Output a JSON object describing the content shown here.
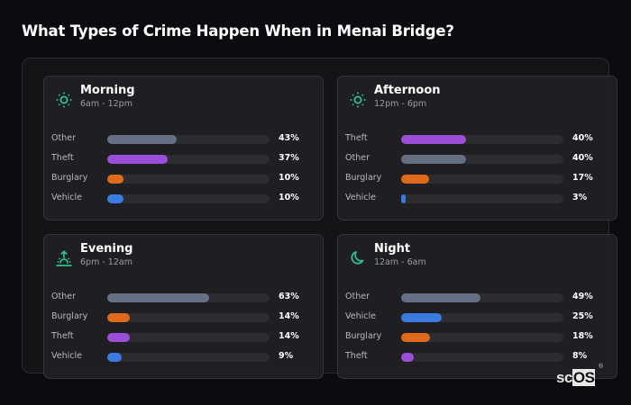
{
  "title": "What Types of Crime Happen When in Menai Bridge?",
  "colors": {
    "Other": "#667085",
    "Theft": "#9b4fd8",
    "Burglary": "#e06a1c",
    "Vehicle": "#3b7be0",
    "accent_icon": "#2dc28e"
  },
  "logo": {
    "text_a": "sc",
    "text_b": "OS",
    "reg": "®"
  },
  "cards": [
    {
      "icon": "sun-icon",
      "title": "Morning",
      "subtitle": "6am - 12pm",
      "rows": [
        {
          "label": "Other",
          "value": 43,
          "pct": "43%"
        },
        {
          "label": "Theft",
          "value": 37,
          "pct": "37%"
        },
        {
          "label": "Burglary",
          "value": 10,
          "pct": "10%"
        },
        {
          "label": "Vehicle",
          "value": 10,
          "pct": "10%"
        }
      ]
    },
    {
      "icon": "sun-icon",
      "title": "Afternoon",
      "subtitle": "12pm - 6pm",
      "rows": [
        {
          "label": "Theft",
          "value": 40,
          "pct": "40%"
        },
        {
          "label": "Other",
          "value": 40,
          "pct": "40%"
        },
        {
          "label": "Burglary",
          "value": 17,
          "pct": "17%"
        },
        {
          "label": "Vehicle",
          "value": 3,
          "pct": "3%"
        }
      ]
    },
    {
      "icon": "sunset-icon",
      "title": "Evening",
      "subtitle": "6pm - 12am",
      "rows": [
        {
          "label": "Other",
          "value": 63,
          "pct": "63%"
        },
        {
          "label": "Burglary",
          "value": 14,
          "pct": "14%"
        },
        {
          "label": "Theft",
          "value": 14,
          "pct": "14%"
        },
        {
          "label": "Vehicle",
          "value": 9,
          "pct": "9%"
        }
      ]
    },
    {
      "icon": "moon-icon",
      "title": "Night",
      "subtitle": "12am - 6am",
      "rows": [
        {
          "label": "Other",
          "value": 49,
          "pct": "49%"
        },
        {
          "label": "Vehicle",
          "value": 25,
          "pct": "25%"
        },
        {
          "label": "Burglary",
          "value": 18,
          "pct": "18%"
        },
        {
          "label": "Theft",
          "value": 8,
          "pct": "8%"
        }
      ]
    }
  ],
  "chart_data": [
    {
      "type": "bar",
      "orientation": "horizontal",
      "title": "Morning",
      "subtitle": "6am - 12pm",
      "categories": [
        "Other",
        "Theft",
        "Burglary",
        "Vehicle"
      ],
      "values": [
        43,
        37,
        10,
        10
      ],
      "unit": "%",
      "xlim": [
        0,
        100
      ]
    },
    {
      "type": "bar",
      "orientation": "horizontal",
      "title": "Afternoon",
      "subtitle": "12pm - 6pm",
      "categories": [
        "Theft",
        "Other",
        "Burglary",
        "Vehicle"
      ],
      "values": [
        40,
        40,
        17,
        3
      ],
      "unit": "%",
      "xlim": [
        0,
        100
      ]
    },
    {
      "type": "bar",
      "orientation": "horizontal",
      "title": "Evening",
      "subtitle": "6pm - 12am",
      "categories": [
        "Other",
        "Burglary",
        "Theft",
        "Vehicle"
      ],
      "values": [
        63,
        14,
        14,
        9
      ],
      "unit": "%",
      "xlim": [
        0,
        100
      ]
    },
    {
      "type": "bar",
      "orientation": "horizontal",
      "title": "Night",
      "subtitle": "12am - 6am",
      "categories": [
        "Other",
        "Vehicle",
        "Burglary",
        "Theft"
      ],
      "values": [
        49,
        25,
        18,
        8
      ],
      "unit": "%",
      "xlim": [
        0,
        100
      ]
    }
  ]
}
